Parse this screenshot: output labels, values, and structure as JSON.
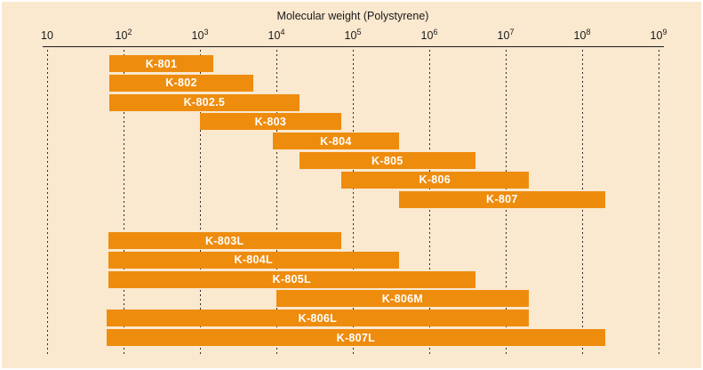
{
  "page": {
    "background_color": "#fae8cf",
    "accent_color": "#ee8c0e"
  },
  "chart_data": {
    "type": "bar",
    "subtype": "horizontal-range-bars-log-axis",
    "title": "Molecular weight (Polystyrene)",
    "x_axis": {
      "scale": "log10",
      "position": "top",
      "range": [
        10,
        1000000000
      ],
      "tick_base": "10",
      "tick_exponents": [
        1,
        2,
        3,
        4,
        5,
        6,
        7,
        8,
        9
      ],
      "gridlines": "vertical-dashed-black"
    },
    "bar_color": "#ee8c0e",
    "bar_label_color": "#ffffff",
    "axis_text_color": "#1a1a1a",
    "groups": [
      {
        "name": "standard-columns",
        "bars": [
          {
            "label": "K-801",
            "range_min": 65,
            "range_max": 1500
          },
          {
            "label": "K-802",
            "range_min": 65,
            "range_max": 5000
          },
          {
            "label": "K-802.5",
            "range_min": 65,
            "range_max": 20000
          },
          {
            "label": "K-803",
            "range_min": 1000,
            "range_max": 70000
          },
          {
            "label": "K-804",
            "range_min": 9000,
            "range_max": 400000
          },
          {
            "label": "K-805",
            "range_min": 20000,
            "range_max": 4000000
          },
          {
            "label": "K-806",
            "range_min": 70000,
            "range_max": 20000000
          },
          {
            "label": "K-807",
            "range_min": 400000,
            "range_max": 200000000
          }
        ]
      },
      {
        "name": "linear-mixed-columns",
        "bars": [
          {
            "label": "K-803L",
            "range_min": 63,
            "range_max": 70000
          },
          {
            "label": "K-804L",
            "range_min": 63,
            "range_max": 400000
          },
          {
            "label": "K-805L",
            "range_min": 63,
            "range_max": 4000000
          },
          {
            "label": "K-806M",
            "range_min": 10000,
            "range_max": 20000000
          },
          {
            "label": "K-806L",
            "range_min": 60,
            "range_max": 20000000
          },
          {
            "label": "K-807L",
            "range_min": 60,
            "range_max": 200000000
          }
        ]
      }
    ]
  }
}
